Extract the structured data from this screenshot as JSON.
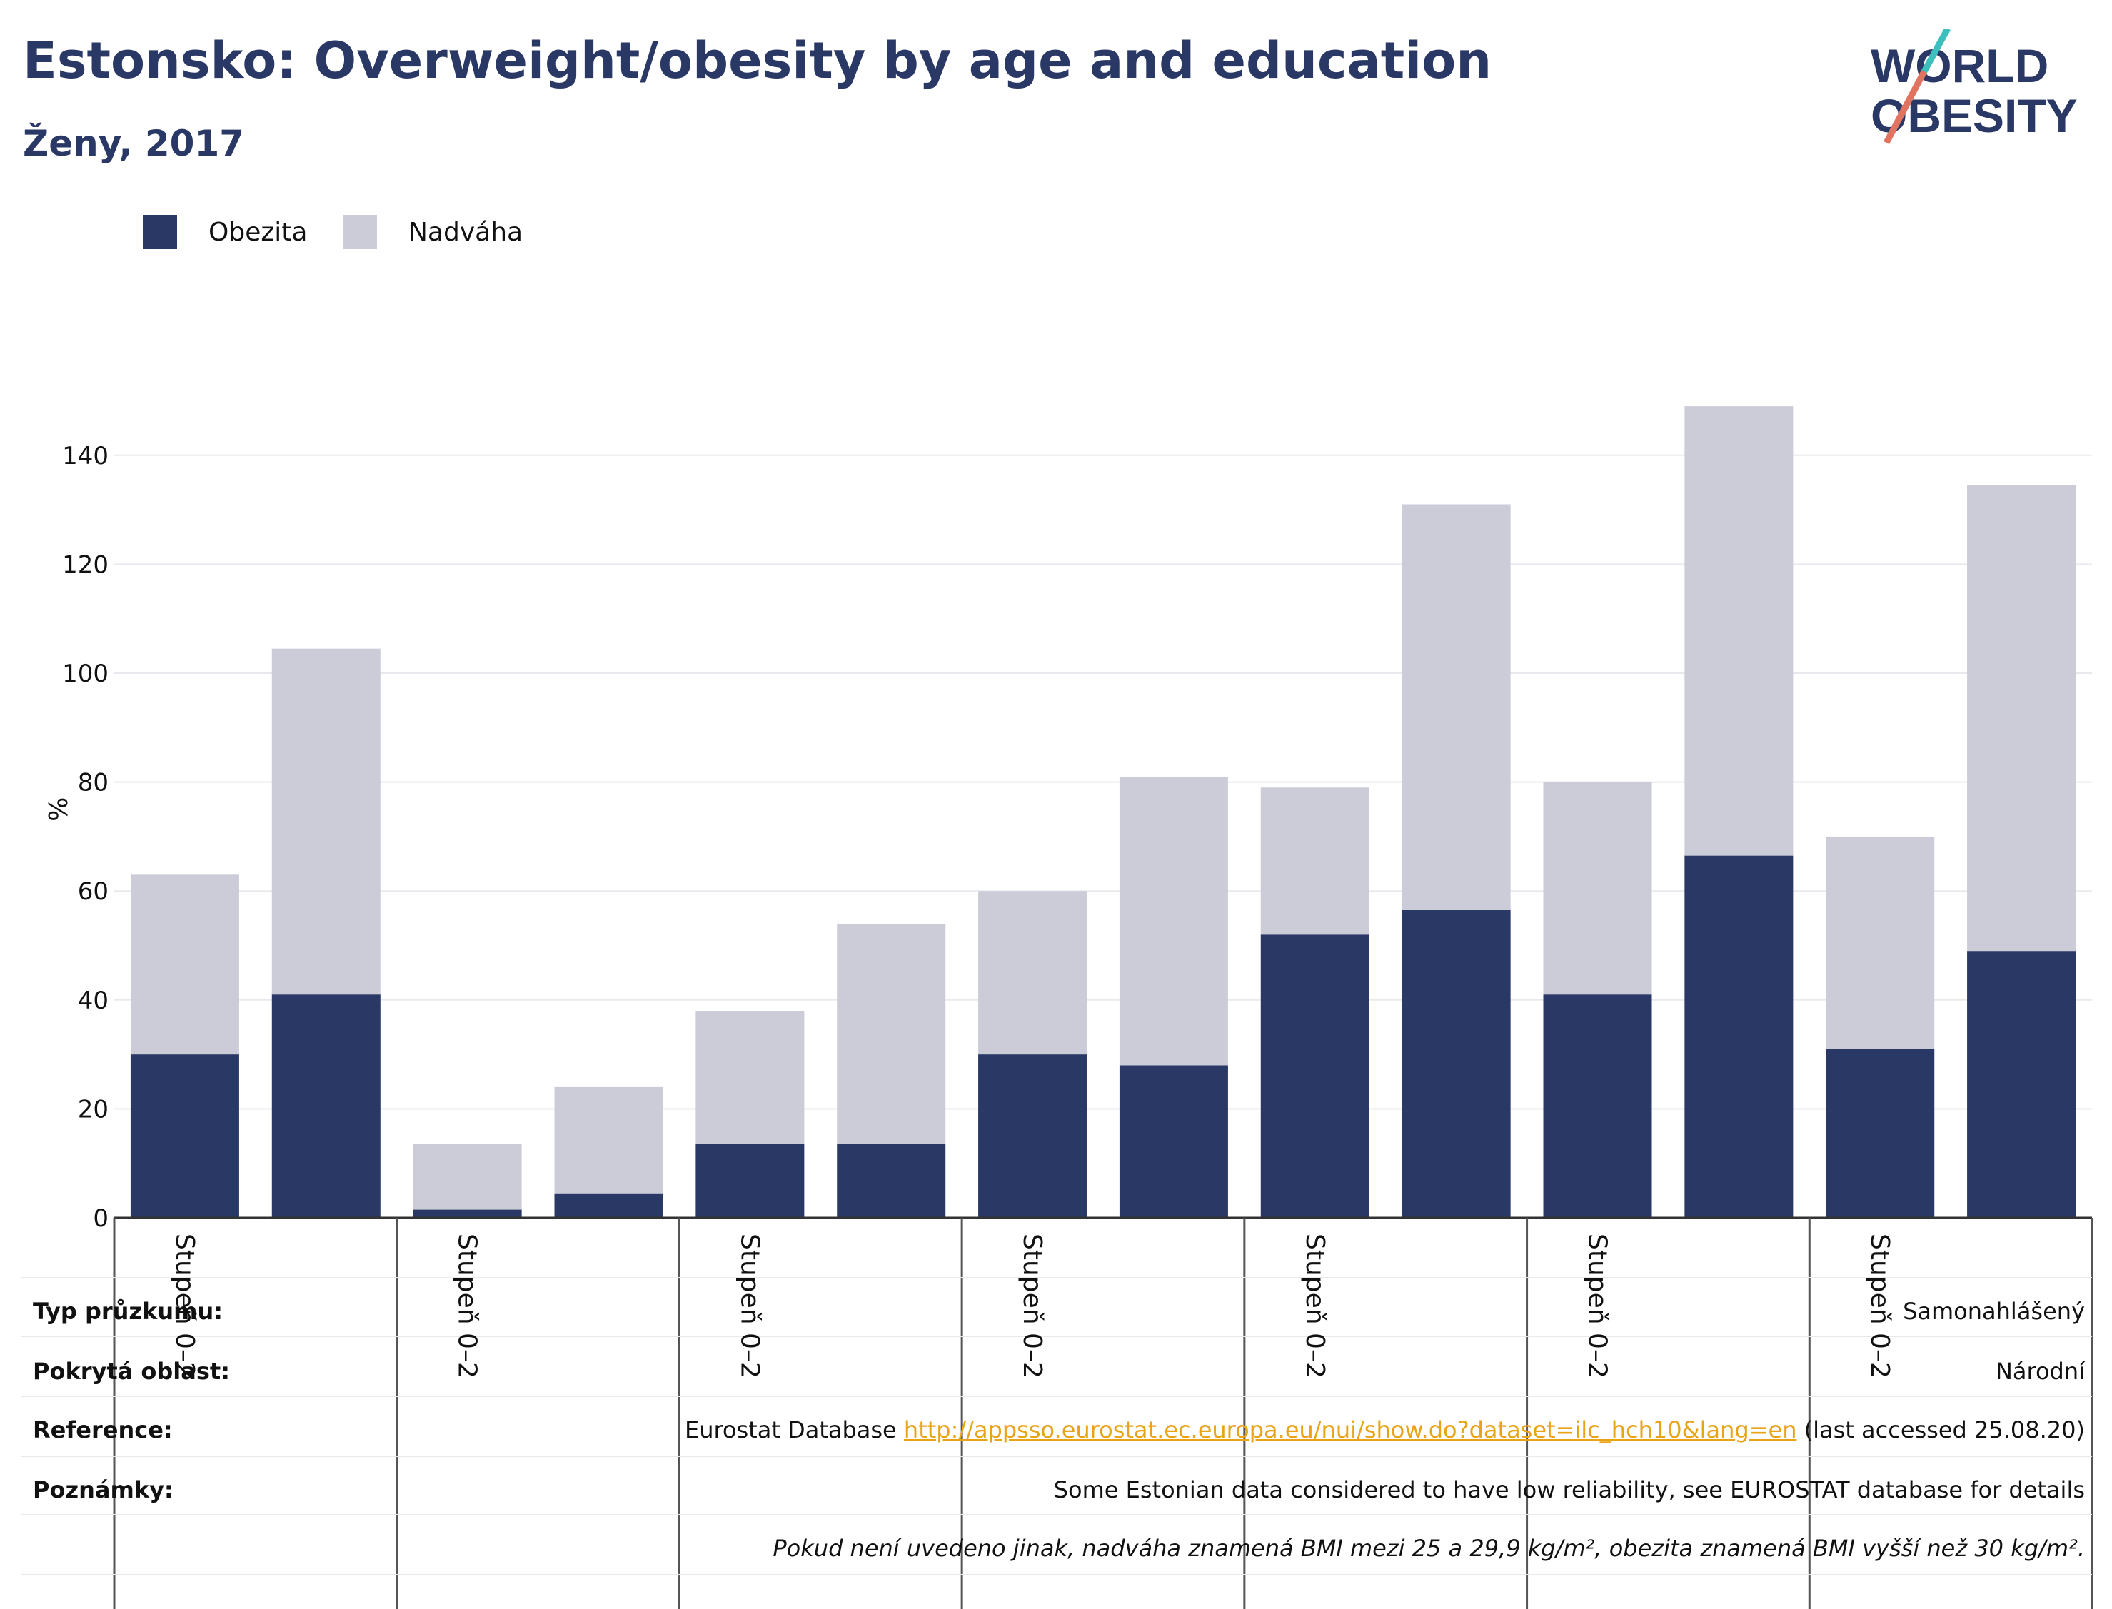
{
  "header": {
    "title": "Estonsko: Overweight/obesity by age and education",
    "subtitle": "Ženy, 2017"
  },
  "logo": {
    "line1": "WORLD",
    "line2": "OBESITY"
  },
  "colors": {
    "obesity": "#2a3865",
    "overweight": "#cbccd7",
    "title": "#2a3865",
    "link": "#e8a317"
  },
  "chart_data": {
    "type": "bar",
    "stacked": true,
    "ylabel": "%",
    "ylim": [
      0,
      150
    ],
    "yticks": [
      0,
      20,
      40,
      60,
      80,
      100,
      120,
      140
    ],
    "grid": true,
    "legend_position": "top-left",
    "categories": [
      "Stupeň 0–2",
      "",
      "Stupeň 0–2",
      "",
      "Stupeň 0–2",
      "",
      "Stupeň 0–2",
      "",
      "Stupeň 0–2",
      "",
      "Stupeň 0–2",
      "",
      "Stupeň 0–2",
      ""
    ],
    "series": [
      {
        "name": "Obezita",
        "values": [
          30,
          41,
          1.5,
          4.5,
          13.5,
          13.5,
          30,
          28,
          52,
          56.5,
          41,
          66.5,
          31,
          49
        ]
      },
      {
        "name": "Nadváha",
        "values": [
          33,
          63.5,
          12,
          19.5,
          24.5,
          40.5,
          30,
          53,
          27,
          74.5,
          39,
          82.5,
          39,
          85.5
        ]
      }
    ]
  },
  "info": {
    "rows": [
      {
        "label": "Typ průzkumu:",
        "value": "Samonahlášený"
      },
      {
        "label": "Pokrytá oblast:",
        "value": "Národní"
      },
      {
        "label": "Reference:",
        "value_pre": "Eurostat Database ",
        "link": "http://appsso.eurostat.ec.europa.eu/nui/show.do?dataset=ilc_hch10&lang=en",
        "value_post": " (last accessed 25.08.20)"
      },
      {
        "label": "Poznámky:",
        "value": "Some Estonian data considered to have low reliability, see EUROSTAT database for details"
      }
    ],
    "footnote": "Pokud není uvedeno jinak, nadváha znamená BMI mezi 25 a 29,9 kg/m², obezita znamená BMI vyšší než 30 kg/m²."
  }
}
